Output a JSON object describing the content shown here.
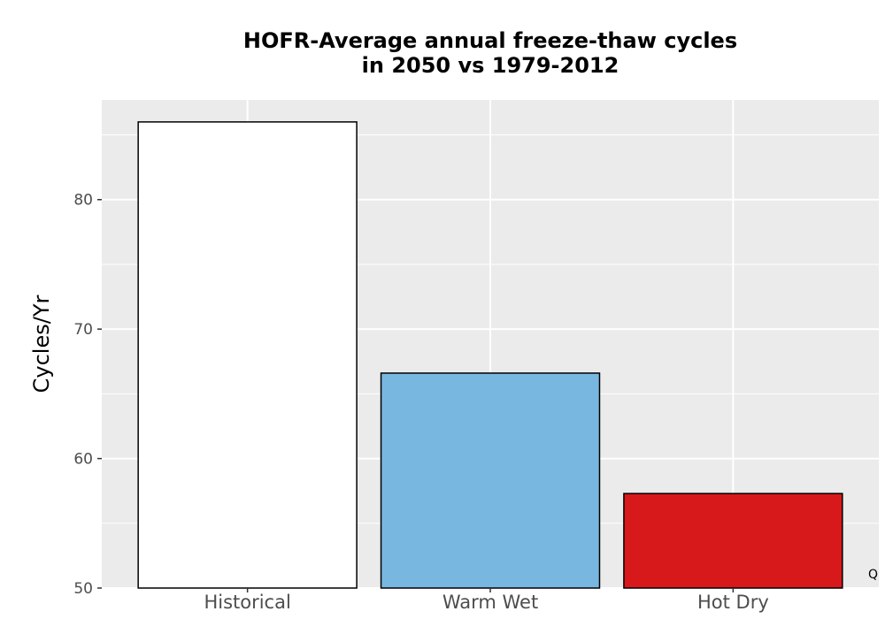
{
  "chart_data": {
    "type": "bar",
    "title_lines": [
      "HOFR-Average annual freeze-thaw cycles",
      "in 2050 vs 1979-2012"
    ],
    "xlabel": "",
    "ylabel": "Cycles/Yr",
    "categories": [
      "Historical",
      "Warm Wet",
      "Hot Dry"
    ],
    "values": [
      86.0,
      66.6,
      57.3
    ],
    "colors": [
      "#ffffff",
      "#78b7e0",
      "#d7191c"
    ],
    "ylim": [
      50,
      87.7
    ],
    "yticks": [
      50,
      60,
      70,
      80
    ],
    "grid": true,
    "panel_background": "#ebebeb",
    "corner_mark": "Q"
  }
}
